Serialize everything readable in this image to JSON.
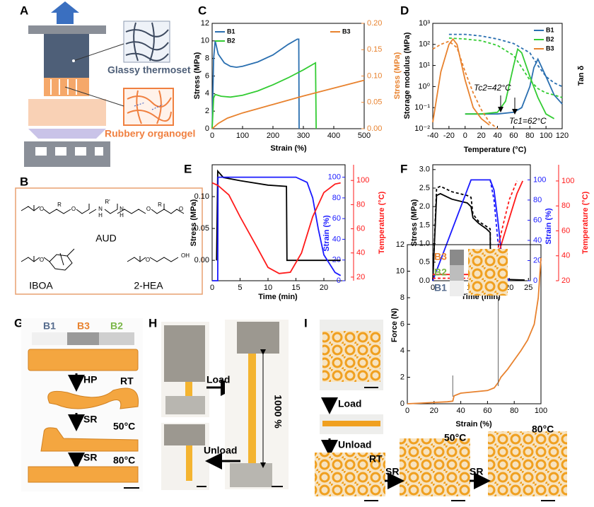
{
  "figure": {
    "panel_labels": [
      "A",
      "B",
      "C",
      "D",
      "E",
      "F",
      "G",
      "H",
      "I"
    ],
    "panel_a": {
      "thermoset": "Glassy thermoset",
      "organogel": "Rubbery organogel"
    },
    "panel_b": {
      "aud": "AUD",
      "iboa": "IBOA",
      "hea": "2-HEA",
      "atoms": [
        "O",
        "R",
        "O",
        "N",
        "H",
        "R'",
        "N",
        "H",
        "O",
        "R",
        "O",
        "O",
        "O",
        "OH"
      ]
    },
    "panel_g": {
      "segments": [
        "B1",
        "B3",
        "B2"
      ],
      "hp": "HP",
      "rt": "RT",
      "sr1": "SR",
      "t50": "50°C",
      "sr2": "SR",
      "t80": "80°C"
    },
    "panel_h": {
      "load": "Load",
      "unload": "Unload",
      "elong": "1000 %"
    },
    "panel_i": {
      "load": "Load",
      "unload": "Unload",
      "rt": "RT",
      "sr1": "SR",
      "t50": "50°C",
      "sr2": "SR",
      "t80": "80°C"
    }
  },
  "chart_data": [
    {
      "type": "line",
      "xlabel": "Strain (%)",
      "ylabel": "Stress (MPa)",
      "y2label": "Stress (MPa)",
      "y2color": "#e8822e",
      "xlim": [
        0,
        500
      ],
      "xticks": [
        0,
        100,
        200,
        300,
        400,
        500
      ],
      "ylim": [
        0,
        12
      ],
      "yticks": [
        0,
        2,
        4,
        6,
        8,
        10,
        12
      ],
      "y2lim": [
        0,
        0.2
      ],
      "y2ticks": [
        {
          "value": 0,
          "label": "0.00"
        },
        {
          "value": 0.05,
          "label": "0.05"
        },
        {
          "value": 0.1,
          "label": "0.10"
        },
        {
          "value": 0.15,
          "label": "0.15"
        },
        {
          "value": 0.2,
          "label": "0.20"
        }
      ],
      "series": [
        {
          "name": "B1",
          "color": "#2a6fb0",
          "x": [
            0,
            5,
            10,
            20,
            40,
            60,
            80,
            100,
            150,
            200,
            250,
            280,
            285,
            286
          ],
          "values": [
            0,
            8,
            10,
            8.5,
            7.5,
            7.1,
            7.0,
            7.1,
            7.6,
            8.4,
            9.6,
            10.2,
            10.2,
            0
          ]
        },
        {
          "name": "B2",
          "color": "#33cc33",
          "x": [
            0,
            5,
            10,
            30,
            60,
            100,
            150,
            200,
            250,
            300,
            340,
            342
          ],
          "values": [
            0,
            3.5,
            3.9,
            3.7,
            3.6,
            3.8,
            4.3,
            5.0,
            5.8,
            6.7,
            7.5,
            0
          ]
        },
        {
          "name": "B3",
          "color": "#e8822e",
          "axis": "y2",
          "x": [
            0,
            20,
            50,
            100,
            150,
            200,
            300,
            400,
            500
          ],
          "values": [
            0,
            0.01,
            0.02,
            0.03,
            0.038,
            0.046,
            0.062,
            0.077,
            0.092
          ]
        }
      ]
    },
    {
      "type": "line",
      "xlabel": "Temperature (°C)",
      "ylabel": "Storage modulus (MPa)",
      "y2label": "Tan δ",
      "ylog": true,
      "xlim": [
        -40,
        120
      ],
      "xticks": [
        -40,
        -20,
        0,
        20,
        40,
        60,
        80,
        100,
        120
      ],
      "ylim": [
        0.01,
        1000
      ],
      "yticks": [
        {
          "value": 0.01,
          "label": "10⁻²"
        },
        {
          "value": 0.1,
          "label": "10⁻¹"
        },
        {
          "value": 1,
          "label": "10⁰"
        },
        {
          "value": 10,
          "label": "10¹"
        },
        {
          "value": 100,
          "label": "10²"
        },
        {
          "value": 1000,
          "label": "10³"
        }
      ],
      "legend": "upper right",
      "annotations": [
        "Tc2=42°C",
        "Tc1=62°C"
      ],
      "series": [
        {
          "name": "B1",
          "color": "#2a6fb0",
          "x": [
            0,
            20,
            40,
            60,
            70,
            80,
            85,
            90,
            100,
            110,
            120
          ],
          "values": [
            0.05,
            0.05,
            0.05,
            0.06,
            0.1,
            1,
            8,
            20,
            3,
            0.4,
            0.15
          ]
        },
        {
          "name": "B2",
          "color": "#33cc33",
          "x": [
            0,
            20,
            40,
            50,
            60,
            65,
            70,
            80,
            90,
            100,
            110
          ],
          "values": [
            0.05,
            0.05,
            0.06,
            0.2,
            10,
            60,
            40,
            3,
            0.3,
            0.05,
            0.03
          ]
        },
        {
          "name": "B3",
          "color": "#e8822e",
          "x": [
            -40,
            -30,
            -20,
            -15,
            -10,
            0,
            10,
            20,
            30
          ],
          "values": [
            0.02,
            5,
            100,
            180,
            100,
            2,
            0.1,
            0.03,
            0.015
          ]
        },
        {
          "color": "#2a6fb0",
          "dash": true,
          "x": [
            -20,
            0,
            20,
            40,
            60,
            80,
            90,
            100,
            110,
            120
          ],
          "values": [
            300,
            300,
            250,
            180,
            110,
            40,
            10,
            3,
            1.5,
            1
          ]
        },
        {
          "color": "#33cc33",
          "dash": true,
          "x": [
            -20,
            0,
            20,
            40,
            60,
            70,
            80,
            90,
            100,
            110,
            120
          ],
          "values": [
            200,
            180,
            150,
            90,
            30,
            8,
            2,
            0.8,
            0.5,
            0.4,
            0.3
          ]
        },
        {
          "color": "#e8822e",
          "dash": true,
          "x": [
            -40,
            -30,
            -20,
            -10,
            0,
            10,
            20,
            30,
            40
          ],
          "values": [
            60,
            100,
            140,
            70,
            5,
            0.5,
            0.08,
            0.02,
            0.01
          ]
        }
      ]
    },
    {
      "type": "line",
      "xlabel": "Time (min)",
      "ylabel": "Stress (MPa)",
      "y2label": "Strain (%)",
      "y3label": "Temperature (°C)",
      "y2color": "#1a1aff",
      "y3color": "#ff1a1a",
      "xlim": [
        0,
        23.8
      ],
      "xticks": [
        0,
        5,
        10,
        15,
        20
      ],
      "ylim": [
        -0.032,
        0.15
      ],
      "yticks": [
        {
          "value": 0,
          "label": "0.00"
        },
        {
          "value": 0.05,
          "label": "0.05"
        },
        {
          "value": 0.1,
          "label": "0.10"
        }
      ],
      "y2lim": [
        0,
        112
      ],
      "y2ticks": [
        0,
        20,
        40,
        60,
        80,
        100
      ],
      "y3lim": [
        17,
        113
      ],
      "y3ticks": [
        20,
        40,
        60,
        80,
        100
      ],
      "series": [
        {
          "color": "#000000",
          "x": [
            0.8,
            1,
            2,
            5,
            10,
            13.3,
            13.4,
            23
          ],
          "values": [
            0,
            0.14,
            0.13,
            0.125,
            0.118,
            0.116,
            0,
            0
          ]
        },
        {
          "color": "#1a1aff",
          "axis": "y2",
          "x": [
            0,
            1,
            1.05,
            10,
            15,
            17,
            18,
            19,
            20,
            22,
            23
          ],
          "values": [
            0,
            0,
            100,
            100,
            100,
            95,
            80,
            50,
            25,
            8,
            5
          ]
        },
        {
          "color": "#ff1a1a",
          "axis": "y3",
          "x": [
            0,
            1,
            3,
            5,
            8,
            10,
            12,
            14,
            16,
            18,
            20,
            22,
            23
          ],
          "values": [
            98,
            96,
            88,
            70,
            45,
            28,
            23,
            24,
            40,
            70,
            90,
            97,
            98
          ]
        }
      ]
    },
    {
      "type": "line",
      "xlabel": "Time (min)",
      "ylabel": "Stress (MPa)",
      "y2label": "Strain (%)",
      "y3label": "Temperature (°C)",
      "y2color": "#1a1aff",
      "y3color": "#ff1a1a",
      "xlim": [
        0,
        25.5
      ],
      "xticks": [
        0,
        5,
        10,
        15,
        20,
        25
      ],
      "ylim": [
        0,
        3.13
      ],
      "yticks": [
        {
          "value": 0,
          "label": "0.0"
        },
        {
          "value": 0.5,
          "label": "0.5"
        },
        {
          "value": 1,
          "label": "1.0"
        },
        {
          "value": 1.5,
          "label": "1.5"
        },
        {
          "value": 2,
          "label": "2.0"
        },
        {
          "value": 2.5,
          "label": "2.5"
        },
        {
          "value": 3,
          "label": "3.0"
        }
      ],
      "y2lim": [
        0,
        115
      ],
      "y2ticks": [
        0,
        20,
        40,
        60,
        80,
        100
      ],
      "y3lim": [
        20,
        113
      ],
      "y3ticks": [
        20,
        40,
        60,
        80,
        100
      ],
      "series": [
        {
          "color": "#000000",
          "x": [
            0,
            1,
            2,
            5,
            9,
            10,
            10.5,
            12,
            14,
            15,
            15.1,
            24
          ],
          "values": [
            0,
            2.3,
            2.35,
            2.2,
            2.1,
            2.0,
            1.7,
            1.55,
            1.4,
            1.3,
            0.05,
            0.02
          ]
        },
        {
          "color": "#000000",
          "dash": true,
          "x": [
            0,
            1,
            2,
            5,
            9,
            10,
            10.5,
            12,
            15,
            15.1
          ],
          "values": [
            0,
            2.5,
            2.55,
            2.4,
            2.3,
            2.25,
            1.8,
            1.6,
            1.4,
            0.05
          ]
        },
        {
          "color": "#1a1aff",
          "axis": "y2",
          "x": [
            0,
            1,
            10,
            15,
            16,
            17,
            18,
            19,
            20
          ],
          "values": [
            0,
            10,
            100,
            100,
            90,
            60,
            25,
            5,
            0
          ]
        },
        {
          "color": "#1a1aff",
          "axis": "y2",
          "dash": true,
          "x": [
            15,
            16,
            17,
            18,
            19
          ],
          "values": [
            100,
            80,
            40,
            10,
            0
          ]
        },
        {
          "color": "#ff1a1a",
          "axis": "y3",
          "x": [
            0,
            15,
            16,
            18,
            20,
            22,
            23.5
          ],
          "values": [
            25,
            25,
            28,
            50,
            70,
            90,
            100
          ]
        },
        {
          "color": "#ff1a1a",
          "axis": "y3",
          "dash": true,
          "x": [
            0,
            15,
            16,
            18,
            20,
            22
          ],
          "values": [
            22,
            22,
            30,
            60,
            85,
            100
          ]
        }
      ]
    },
    {
      "type": "line",
      "xlabel": "Strain (%)",
      "ylabel": "Force (N)",
      "xlim": [
        0,
        100
      ],
      "xticks": [
        0,
        20,
        40,
        60,
        80,
        100
      ],
      "ylim": [
        0,
        12
      ],
      "yticks": [
        0,
        2,
        4,
        6,
        8,
        10,
        12
      ],
      "inset_labels": [
        {
          "text": "B3",
          "color": "#e8822e"
        },
        {
          "text": "B2",
          "color": "#7ab648"
        },
        {
          "text": "B1",
          "color": "#556b8d"
        }
      ],
      "series": [
        {
          "color": "#e8822e",
          "x": [
            0,
            10,
            20,
            30,
            34,
            35,
            40,
            50,
            60,
            65,
            68,
            70,
            75,
            80,
            85,
            90,
            95,
            98,
            100
          ],
          "values": [
            0,
            0.05,
            0.1,
            0.15,
            0.2,
            0.6,
            0.8,
            0.9,
            1.0,
            1.2,
            1.6,
            2.0,
            2.6,
            3.3,
            4.0,
            4.8,
            6.0,
            8,
            11
          ]
        }
      ]
    }
  ]
}
